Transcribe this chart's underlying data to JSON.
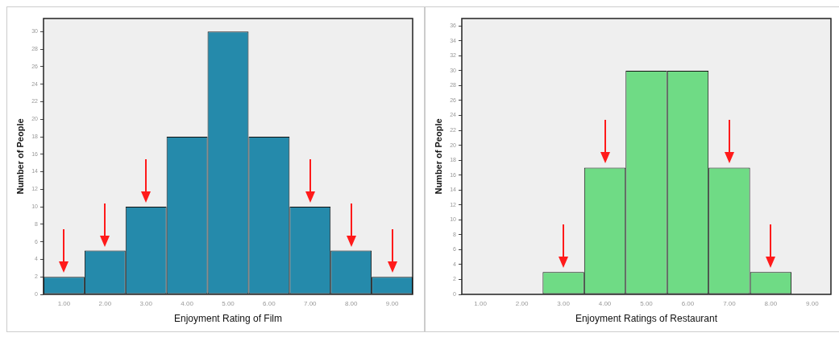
{
  "chart_data": [
    {
      "type": "histogram",
      "xlabel": "Enjoyment Rating of Film",
      "ylabel": "Number of People",
      "bins": [
        0.5,
        1.5,
        2.5,
        3.5,
        4.5,
        5.5,
        6.5,
        7.5,
        8.5,
        9.5
      ],
      "values": [
        2,
        5,
        10,
        18,
        30,
        18,
        10,
        5,
        2
      ],
      "color": "#258aab",
      "xlim": [
        0.5,
        9.5
      ],
      "ylim": [
        0,
        31.5
      ],
      "xticks": [
        {
          "value": 1,
          "label": "1.00"
        },
        {
          "value": 2,
          "label": "2.00"
        },
        {
          "value": 3,
          "label": "3.00"
        },
        {
          "value": 4,
          "label": "4.00"
        },
        {
          "value": 5,
          "label": "5.00"
        },
        {
          "value": 6,
          "label": "6.00"
        },
        {
          "value": 7,
          "label": "7.00"
        },
        {
          "value": 8,
          "label": "8.00"
        },
        {
          "value": 9,
          "label": "9.00"
        }
      ],
      "yticks": [
        0,
        2,
        4,
        6,
        8,
        10,
        12,
        14,
        16,
        18,
        20,
        22,
        24,
        26,
        28,
        30
      ]
    },
    {
      "type": "histogram",
      "xlabel": "Enjoyment Ratings of Restaurant",
      "ylabel": "Number of People",
      "bins": [
        2.5,
        3.5,
        4.5,
        5.5,
        6.5,
        7.5,
        8.5
      ],
      "values": [
        3,
        17,
        30,
        30,
        17,
        3
      ],
      "color": "#6fdb85",
      "xlim": [
        0.55,
        9.45
      ],
      "ylim": [
        0,
        37
      ],
      "xticks": [
        {
          "value": 1,
          "label": "1.00"
        },
        {
          "value": 2,
          "label": "2.00"
        },
        {
          "value": 3,
          "label": "3.00"
        },
        {
          "value": 4,
          "label": "4.00"
        },
        {
          "value": 5,
          "label": "5.00"
        },
        {
          "value": 6,
          "label": "6.00"
        },
        {
          "value": 7,
          "label": "7.00"
        },
        {
          "value": 8,
          "label": "8.00"
        },
        {
          "value": 9,
          "label": "9.00"
        }
      ],
      "yticks": [
        0,
        2,
        4,
        6,
        8,
        10,
        12,
        14,
        16,
        18,
        20,
        22,
        24,
        26,
        28,
        30,
        32,
        34,
        36
      ]
    }
  ]
}
